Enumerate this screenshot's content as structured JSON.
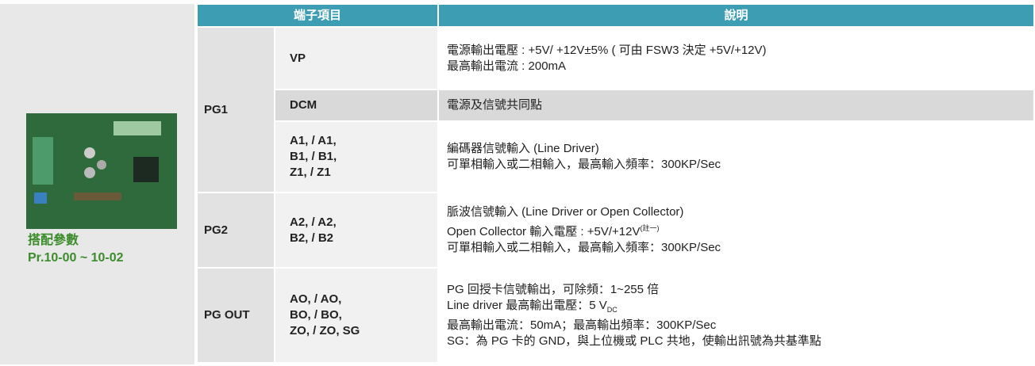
{
  "sidebar": {
    "caption": [
      "搭配參數",
      "Pr.10-00 ~ 10-02"
    ]
  },
  "table": {
    "header": [
      "端子項目",
      "說明"
    ],
    "groups": [
      {
        "name": "PG1",
        "rows": [
          {
            "terminals": [
              "VP"
            ],
            "description": [
              "電源輸出電壓 : +5V/ +12V±5% ( 可由 FSW3 決定 +5V/+12V)",
              "最高輸出電流 : 200mA"
            ]
          },
          {
            "terminals": [
              "DCM"
            ],
            "description": [
              "電源及信號共同點"
            ]
          },
          {
            "terminals": [
              "A1, / A1,",
              "B1, / B1,",
              "Z1, / Z1"
            ],
            "description": [
              "編碼器信號輸入 (Line Driver)",
              "可單相輸入或二相輸入，最高輸入頻率：300KP/Sec"
            ]
          }
        ]
      },
      {
        "name": "PG2",
        "rows": [
          {
            "terminals": [
              "A2, / A2,",
              "B2, / B2"
            ],
            "description": [
              "脈波信號輸入 (Line Driver or Open Collector)",
              {
                "text": "Open Collector 輸入電壓 : +5V/+12V",
                "sup": "(註一)"
              },
              "可單相輸入或二相輸入，最高輸入頻率：300KP/Sec"
            ]
          }
        ]
      },
      {
        "name": "PG OUT",
        "rows": [
          {
            "terminals": [
              "AO, / AO,",
              "BO, / BO,",
              "ZO, / ZO, SG"
            ],
            "description": [
              "PG 回授卡信號輸出，可除頻：1~255 倍",
              {
                "text": "Line driver 最高輸出電壓：5 V",
                "sub": "DC"
              },
              "最高輸出電流：50mA；最高輸出頻率：300KP/Sec",
              "SG：為 PG 卡的 GND，與上位機或 PLC 共地，使輸出訊號為共基準點"
            ]
          }
        ]
      }
    ]
  }
}
